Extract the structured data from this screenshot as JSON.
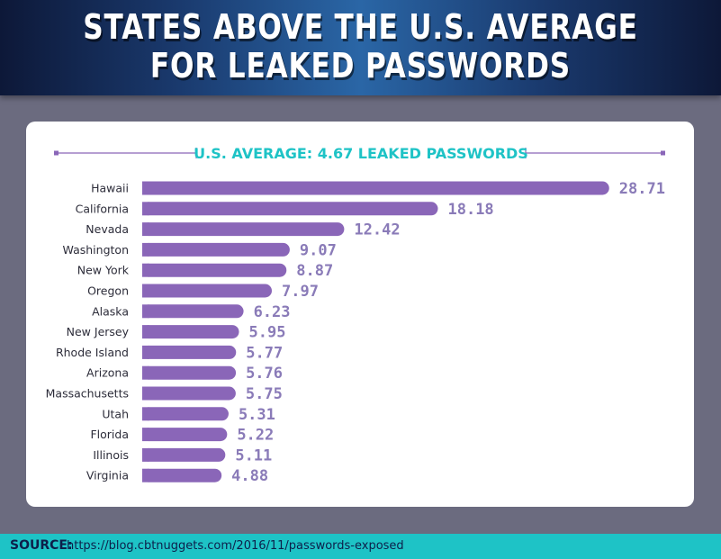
{
  "header": {
    "title_line1": "STATES ABOVE THE U.S. AVERAGE",
    "title_line2": "FOR LEAKED PASSWORDS"
  },
  "footer": {
    "source_label": "SOURCE:",
    "source_url": "https://blog.cbtnuggets.com/2016/11/passwords-exposed"
  },
  "colors": {
    "bar": "#8a66b8",
    "value_text": "#8a7bb8",
    "accent": "#1ec3c6",
    "background": "#6b6b7f",
    "header_dark": "#0d1838"
  },
  "chart_data": {
    "type": "bar",
    "orientation": "horizontal",
    "average_label": "U.S. AVERAGE: 4.67 LEAKED PASSWORDS",
    "average_value": 4.67,
    "categories": [
      "Hawaii",
      "California",
      "Nevada",
      "Washington",
      "New York",
      "Oregon",
      "Alaska",
      "New Jersey",
      "Rhode Island",
      "Arizona",
      "Massachusetts",
      "Utah",
      "Florida",
      "Illinois",
      "Virginia"
    ],
    "values": [
      28.71,
      18.18,
      12.42,
      9.07,
      8.87,
      7.97,
      6.23,
      5.95,
      5.77,
      5.76,
      5.75,
      5.31,
      5.22,
      5.11,
      4.88
    ],
    "value_labels": [
      "28.71",
      "18.18",
      "12.42",
      "9.07",
      "8.87",
      "7.97",
      "6.23",
      "5.95",
      "5.77",
      "5.76",
      "5.75",
      "5.31",
      "5.22",
      "5.11",
      "4.88"
    ],
    "xlim": [
      0,
      29
    ]
  }
}
